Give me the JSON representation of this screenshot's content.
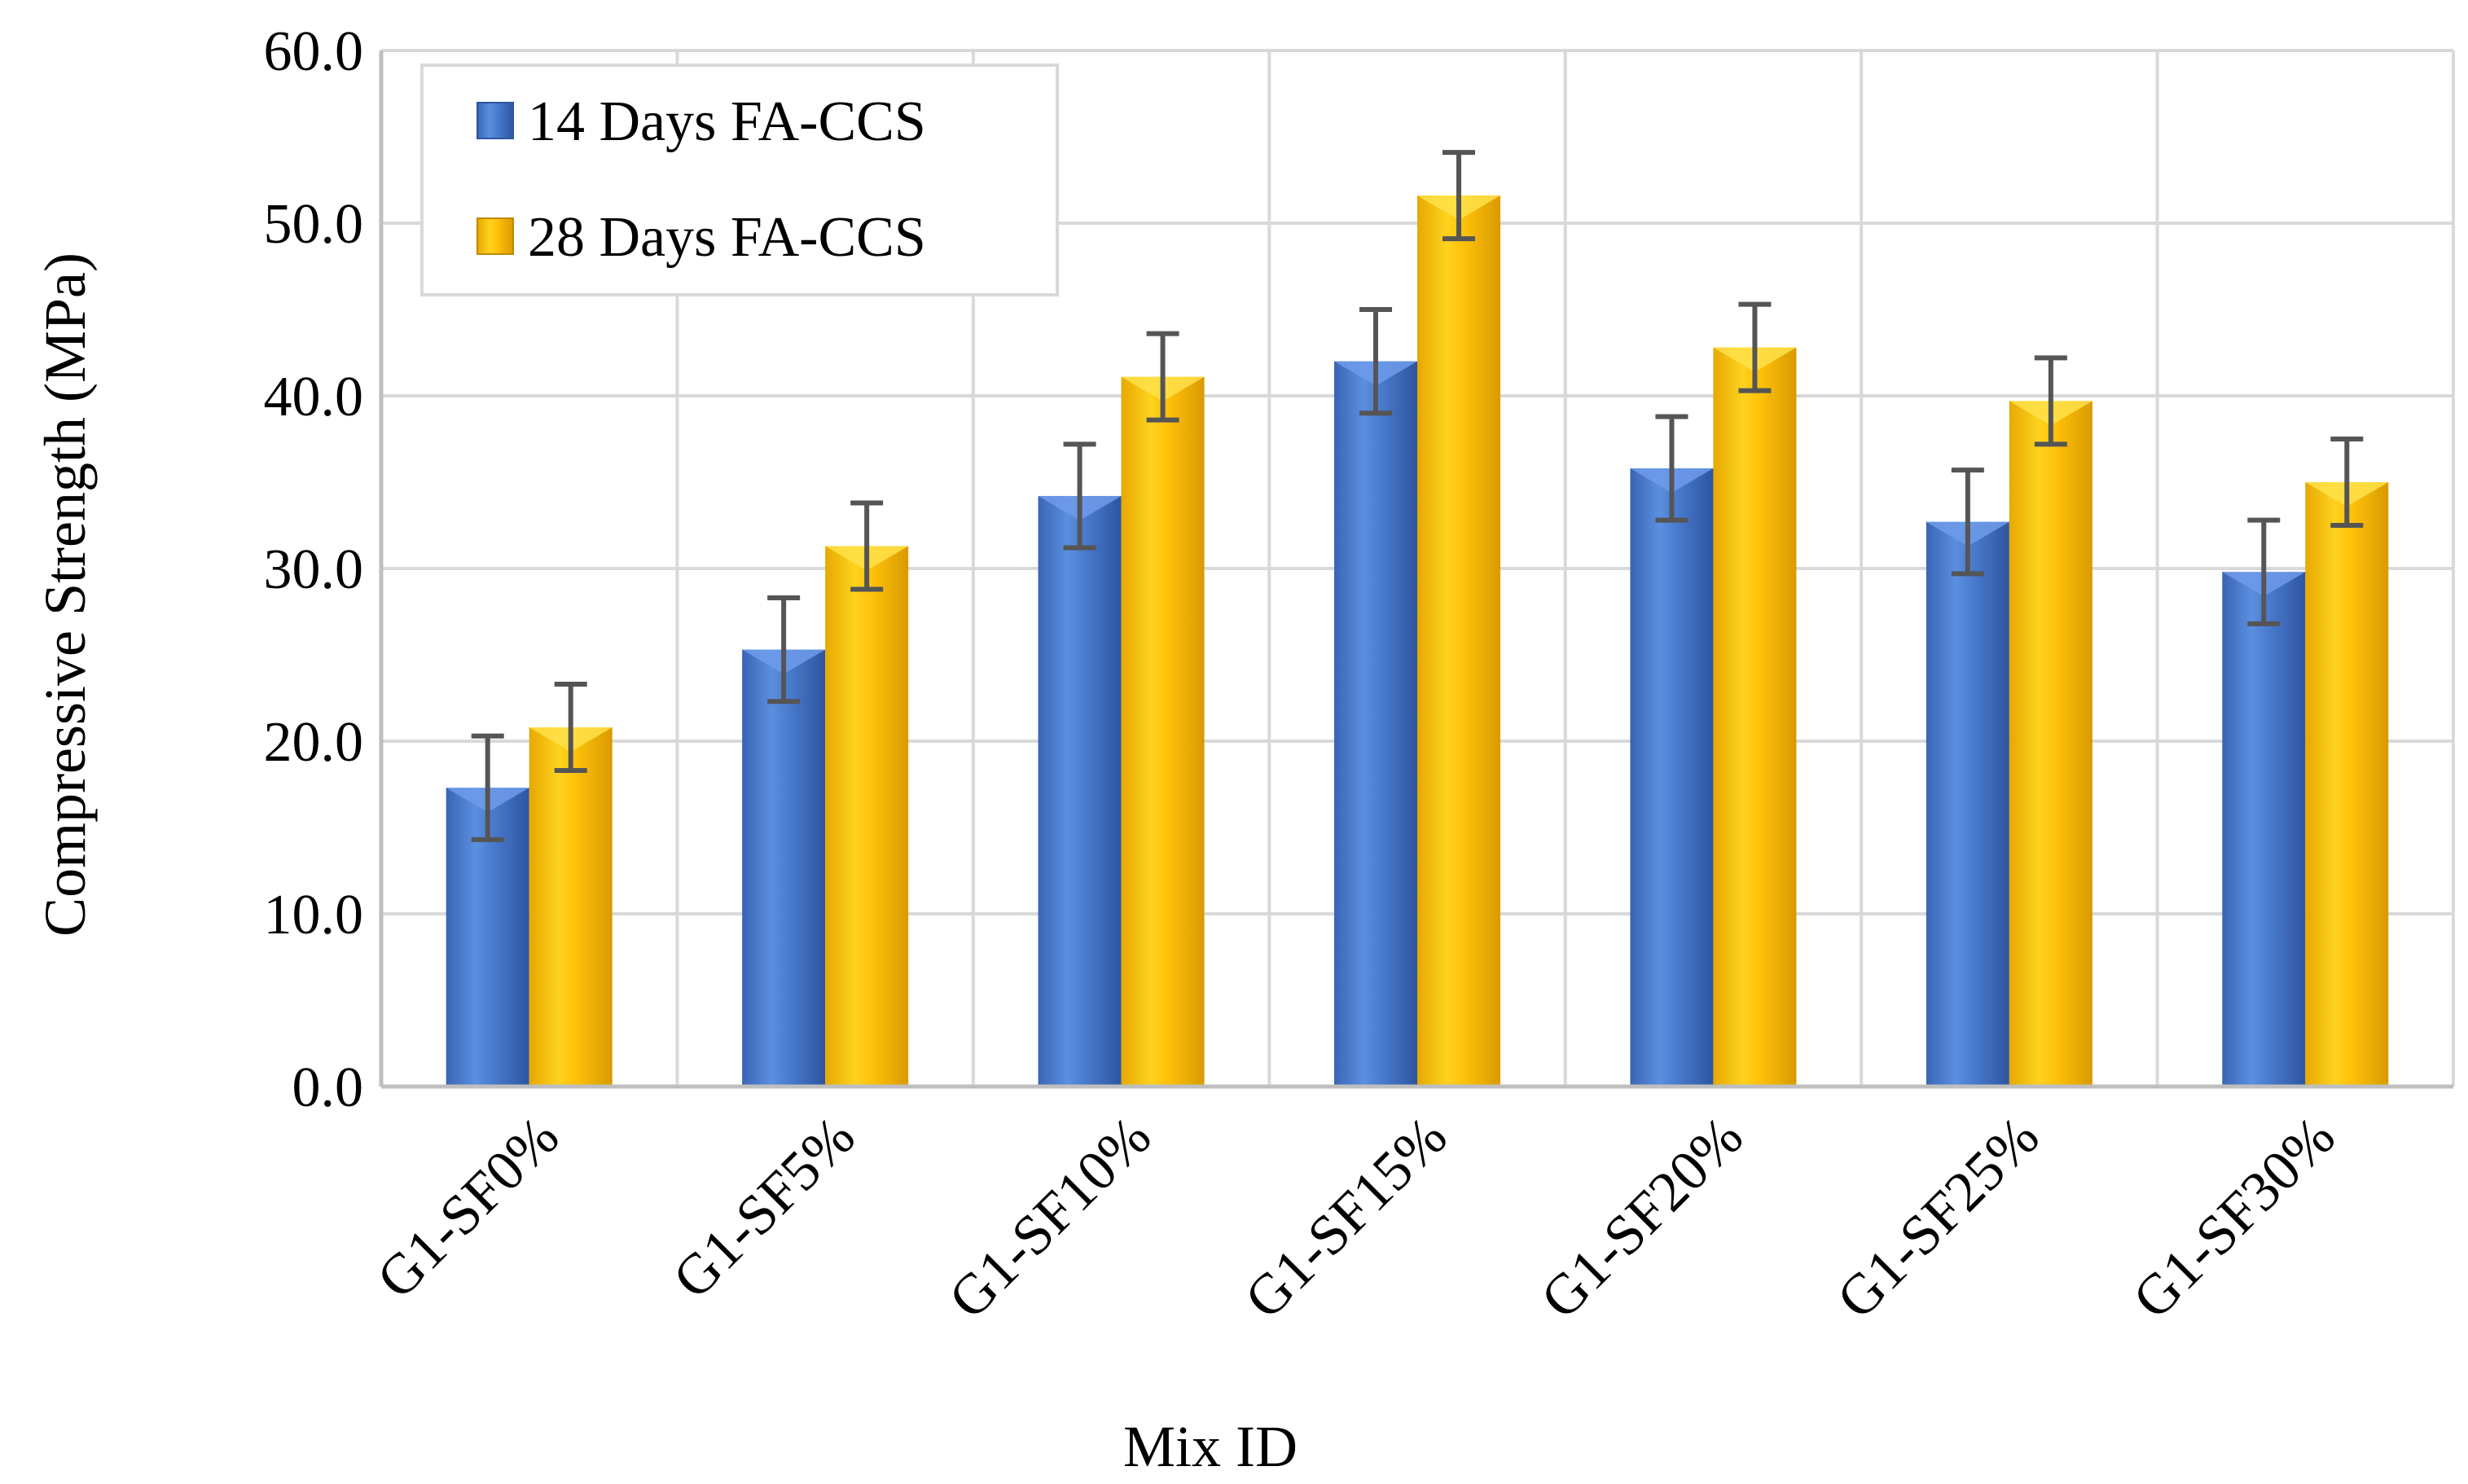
{
  "chart_data": {
    "type": "bar",
    "title": "",
    "xlabel": "Mix ID",
    "ylabel": "Compressive Strength (MPa)",
    "ylim": [
      0,
      60
    ],
    "yticks": [
      "0.0",
      "10.0",
      "20.0",
      "30.0",
      "40.0",
      "50.0",
      "60.0"
    ],
    "grid": true,
    "legend_position": "top-left",
    "categories": [
      "G1-SF0%",
      "G1-SF5%",
      "G1-SF10%",
      "G1-SF15%",
      "G1-SF20%",
      "G1-SF25%",
      "G1-SF30%"
    ],
    "series": [
      {
        "name": "14 Days FA-CCS",
        "color": "#4472C4",
        "values": [
          17.3,
          25.3,
          34.2,
          42.0,
          35.8,
          32.7,
          29.8
        ],
        "errors": [
          3.0,
          3.0,
          3.0,
          3.0,
          3.0,
          3.0,
          3.0
        ]
      },
      {
        "name": "28 Days FA-CCS",
        "color": "#FFC000",
        "values": [
          20.8,
          31.3,
          41.1,
          51.6,
          42.8,
          39.7,
          35.0
        ],
        "errors": [
          2.5,
          2.5,
          2.5,
          2.5,
          2.5,
          2.5,
          2.5
        ]
      }
    ]
  }
}
